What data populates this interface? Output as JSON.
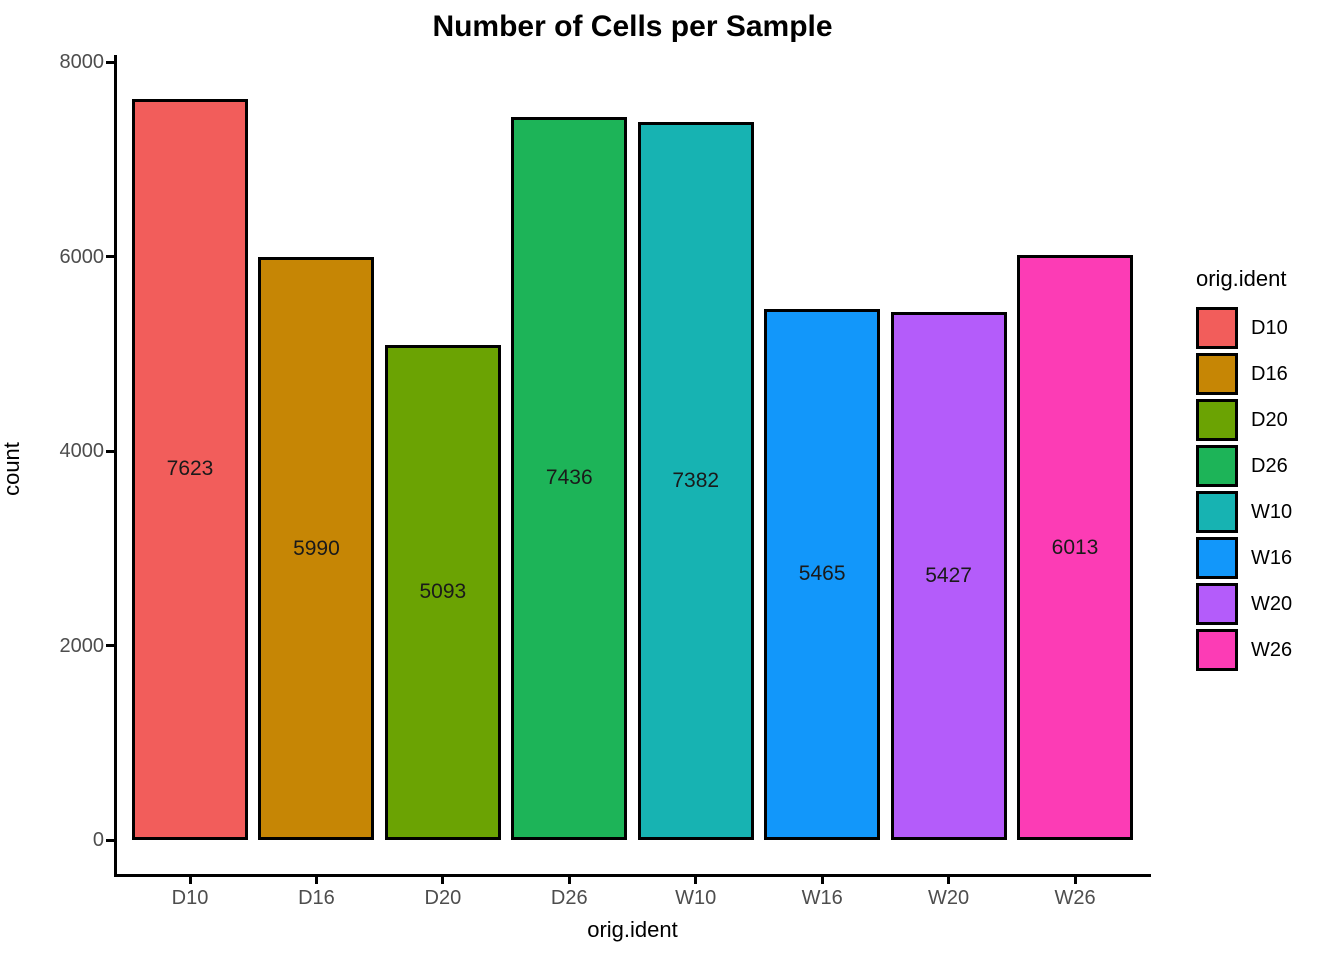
{
  "chart_data": {
    "type": "bar",
    "title": "Number of Cells per Sample",
    "xlabel": "orig.ident",
    "ylabel": "count",
    "categories": [
      "D10",
      "D16",
      "D20",
      "D26",
      "W10",
      "W16",
      "W20",
      "W26"
    ],
    "values": [
      7623,
      5990,
      5093,
      7436,
      7382,
      5465,
      5427,
      6013
    ],
    "colors": [
      "#F25D5B",
      "#C68605",
      "#6BA303",
      "#1DB458",
      "#17B3B2",
      "#1297FA",
      "#B45CFA",
      "#FC3CB5"
    ],
    "ylim": [
      0,
      8000
    ],
    "yticks": [
      0,
      2000,
      4000,
      6000,
      8000
    ],
    "grid": false,
    "bar_value_labels_shown": true,
    "legend": {
      "title": "orig.ident",
      "position": "right",
      "entries": [
        "D10",
        "D16",
        "D20",
        "D26",
        "W10",
        "W16",
        "W20",
        "W26"
      ]
    },
    "style": {
      "bar_border_color": "#000000",
      "axis_color": "#000000",
      "tick_label_color": "#4d4d4d",
      "title_color": "#000000",
      "background": "#ffffff"
    }
  }
}
